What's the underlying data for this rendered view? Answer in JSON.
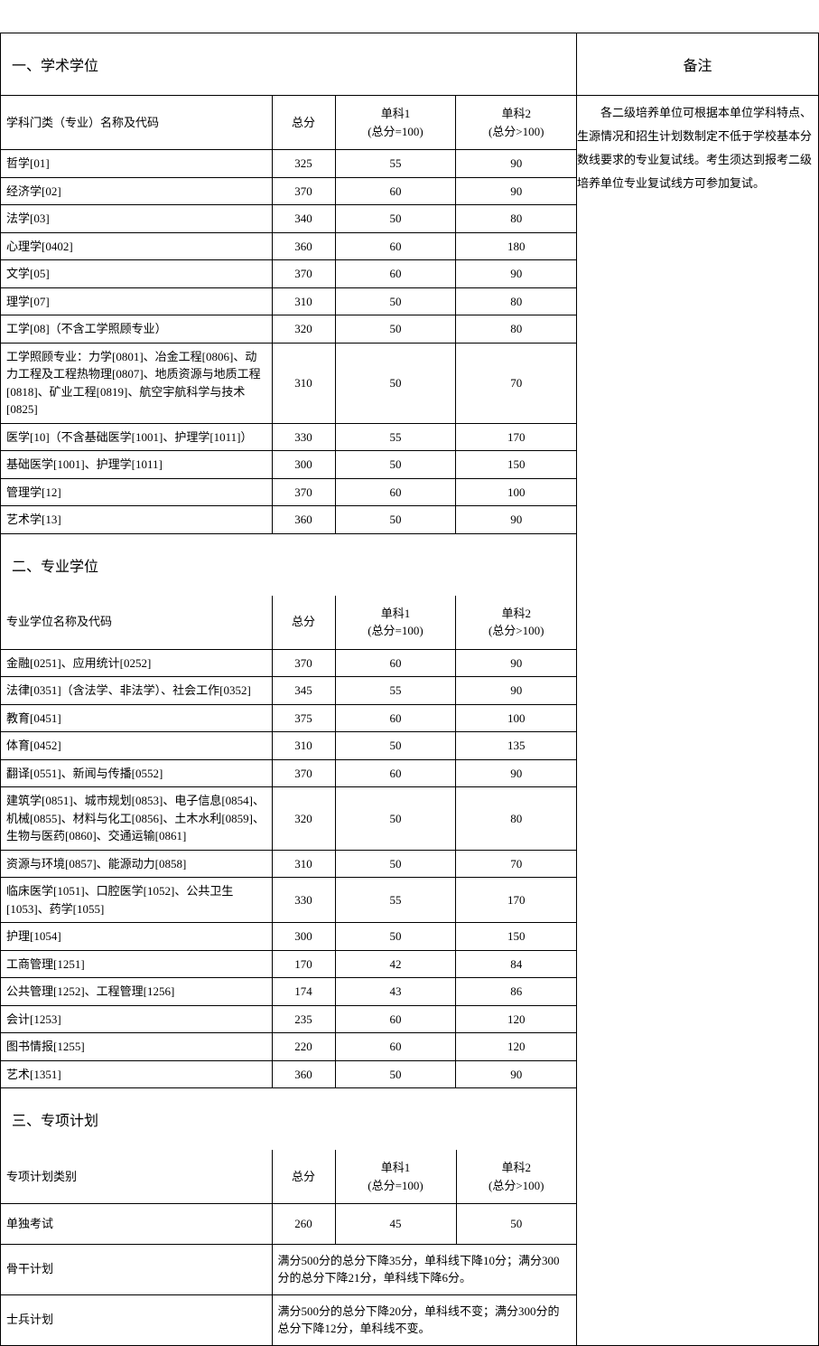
{
  "header": {
    "left": "一、学术学位",
    "right": "备注"
  },
  "remark": "　　各二级培养单位可根据本单位学科特点、生源情况和招生计划数制定不低于学校基本分数线要求的专业复试线。考生须达到报考二级培养单位专业复试线方可参加复试。",
  "columns": {
    "academic_name": "学科门类（专业）名称及代码",
    "prof_name": "专业学位名称及代码",
    "special_name": "专项计划类别",
    "total": "总分",
    "sub1_l1": "单科1",
    "sub1_l2": "(总分=100)",
    "sub2_l1": "单科2",
    "sub2_l2": "(总分>100)"
  },
  "section2_title": "二、专业学位",
  "section3_title": "三、专项计划",
  "academic_rows": [
    {
      "name": "哲学[01]",
      "total": "325",
      "s1": "55",
      "s2": "90"
    },
    {
      "name": "经济学[02]",
      "total": "370",
      "s1": "60",
      "s2": "90"
    },
    {
      "name": "法学[03]",
      "total": "340",
      "s1": "50",
      "s2": "80"
    },
    {
      "name": "心理学[0402]",
      "total": "360",
      "s1": "60",
      "s2": "180"
    },
    {
      "name": "文学[05]",
      "total": "370",
      "s1": "60",
      "s2": "90"
    },
    {
      "name": "理学[07]",
      "total": "310",
      "s1": "50",
      "s2": "80"
    },
    {
      "name": "工学[08]（不含工学照顾专业）",
      "total": "320",
      "s1": "50",
      "s2": "80"
    },
    {
      "name": "工学照顾专业：力学[0801]、冶金工程[0806]、动力工程及工程热物理[0807]、地质资源与地质工程 [0818]、矿业工程[0819]、航空宇航科学与技术[0825]",
      "total": "310",
      "s1": "50",
      "s2": "70"
    },
    {
      "name": "医学[10]（不含基础医学[1001]、护理学[1011]）",
      "total": "330",
      "s1": "55",
      "s2": "170"
    },
    {
      "name": "基础医学[1001]、护理学[1011]",
      "total": "300",
      "s1": "50",
      "s2": "150"
    },
    {
      "name": "管理学[12]",
      "total": "370",
      "s1": "60",
      "s2": "100"
    },
    {
      "name": "艺术学[13]",
      "total": "360",
      "s1": "50",
      "s2": "90"
    }
  ],
  "prof_rows": [
    {
      "name": "金融[0251]、应用统计[0252]",
      "total": "370",
      "s1": "60",
      "s2": "90"
    },
    {
      "name": "法律[0351]（含法学、非法学）、社会工作[0352]",
      "total": "345",
      "s1": "55",
      "s2": "90"
    },
    {
      "name": "教育[0451]",
      "total": "375",
      "s1": "60",
      "s2": "100"
    },
    {
      "name": "体育[0452]",
      "total": "310",
      "s1": "50",
      "s2": "135"
    },
    {
      "name": "翻译[0551]、新闻与传播[0552]",
      "total": "370",
      "s1": "60",
      "s2": "90"
    },
    {
      "name": "建筑学[0851]、城市规划[0853]、电子信息[0854]、机械[0855]、材料与化工[0856]、土木水利[0859]、生物与医药[0860]、交通运输[0861]",
      "total": "320",
      "s1": "50",
      "s2": "80"
    },
    {
      "name": "资源与环境[0857]、能源动力[0858]",
      "total": "310",
      "s1": "50",
      "s2": "70"
    },
    {
      "name": "临床医学[1051]、口腔医学[1052]、公共卫生[1053]、药学[1055]",
      "total": "330",
      "s1": "55",
      "s2": "170"
    },
    {
      "name": "护理[1054]",
      "total": "300",
      "s1": "50",
      "s2": "150"
    },
    {
      "name": "工商管理[1251]",
      "total": "170",
      "s1": "42",
      "s2": "84"
    },
    {
      "name": "公共管理[1252]、工程管理[1256]",
      "total": "174",
      "s1": "43",
      "s2": "86"
    },
    {
      "name": "会计[1253]",
      "total": "235",
      "s1": "60",
      "s2": "120"
    },
    {
      "name": "图书情报[1255]",
      "total": "220",
      "s1": "60",
      "s2": "120"
    },
    {
      "name": "艺术[1351]",
      "total": "360",
      "s1": "50",
      "s2": "90"
    }
  ],
  "special_rows": [
    {
      "name": "单独考试",
      "total": "260",
      "s1": "45",
      "s2": "50",
      "merged": null
    },
    {
      "name": "骨干计划",
      "merged": "满分500分的总分下降35分，单科线下降10分；满分300分的总分下降21分，单科线下降6分。"
    },
    {
      "name": "士兵计划",
      "merged": "满分500分的总分下降20分，单科线不变；满分300分的总分下降12分，单科线不变。"
    }
  ]
}
